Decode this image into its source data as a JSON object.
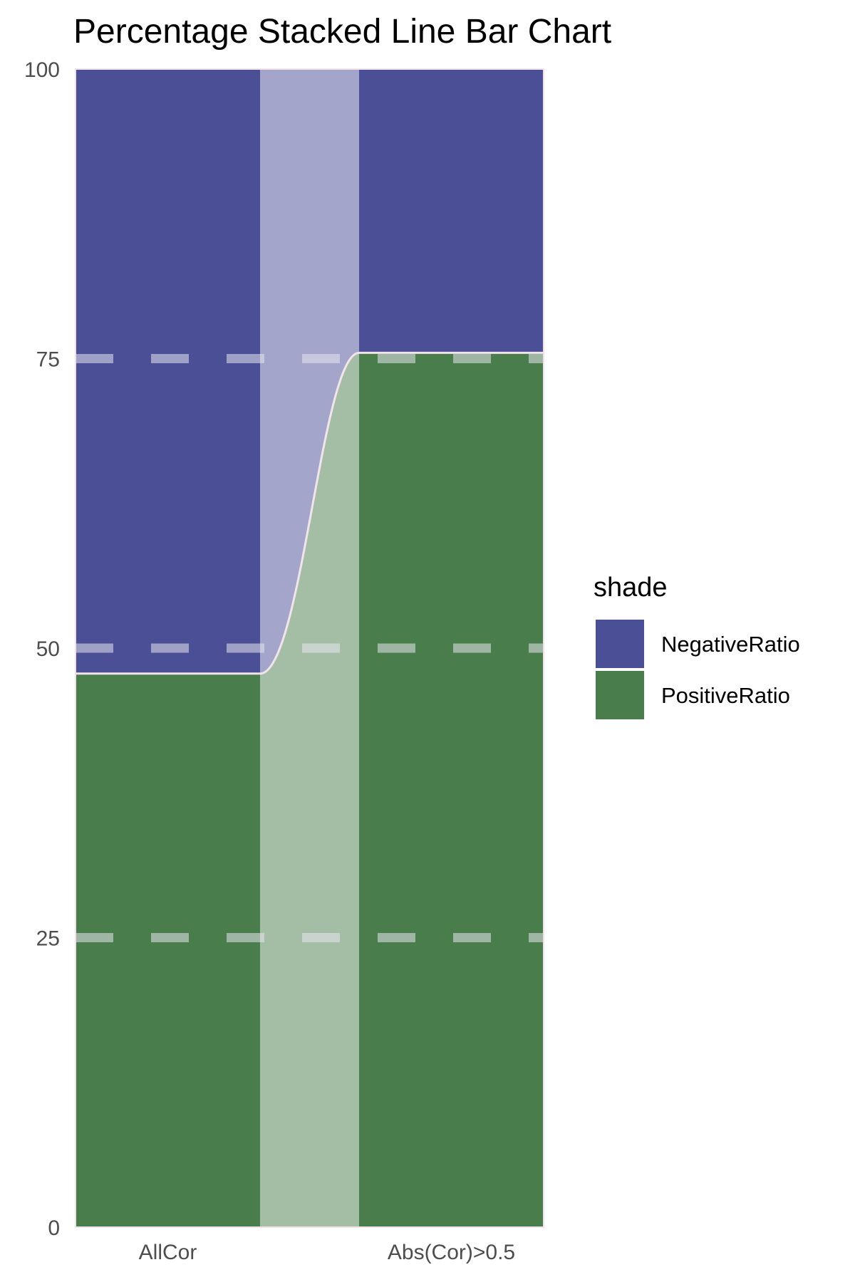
{
  "chart_data": {
    "type": "bar",
    "subtype": "percentage-stacked-bar-with-connecting-line",
    "title": "Percentage Stacked Line Bar Chart",
    "xlabel": "",
    "ylabel": "",
    "categories": [
      "AllCor",
      "Abs(Cor)>0.5"
    ],
    "series": [
      {
        "name": "PositiveRatio",
        "values": [
          47.8,
          75.5
        ],
        "color": "#4a7d4c"
      },
      {
        "name": "NegativeRatio",
        "values": [
          52.2,
          24.5
        ],
        "color": "#4a4f96"
      }
    ],
    "ylim": [
      0,
      100
    ],
    "yticks": [
      "0",
      "25",
      "50",
      "75",
      "100"
    ],
    "grid": "dashed horizontal lines at 25, 50, 75",
    "legend": {
      "title": "shade",
      "position": "right",
      "entries": [
        "NegativeRatio",
        "PositiveRatio"
      ]
    },
    "connector": {
      "style": "smooth curve between bar boundaries",
      "color": "#f3e3ea"
    }
  }
}
